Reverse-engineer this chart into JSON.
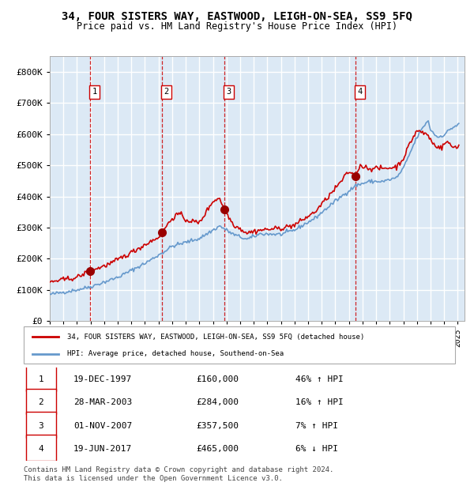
{
  "title": "34, FOUR SISTERS WAY, EASTWOOD, LEIGH-ON-SEA, SS9 5FQ",
  "subtitle": "Price paid vs. HM Land Registry's House Price Index (HPI)",
  "bg_color": "#dce9f5",
  "grid_color": "#ffffff",
  "red_line_color": "#cc0000",
  "blue_line_color": "#6699cc",
  "sale_dot_color": "#990000",
  "vline_color": "#cc0000",
  "ylim": [
    0,
    850000
  ],
  "yticks": [
    0,
    100000,
    200000,
    300000,
    400000,
    500000,
    600000,
    700000,
    800000
  ],
  "ytick_labels": [
    "£0",
    "£100K",
    "£200K",
    "£300K",
    "£400K",
    "£500K",
    "£600K",
    "£700K",
    "£800K"
  ],
  "xmin": 1995.0,
  "xmax": 2025.5,
  "sales": [
    {
      "label": "1",
      "date_str": "19-DEC-1997",
      "year": 1997.96,
      "price": 160000,
      "hpi_pct": "46%",
      "hpi_dir": "↑"
    },
    {
      "label": "2",
      "date_str": "28-MAR-2003",
      "year": 2003.24,
      "price": 284000,
      "hpi_pct": "16%",
      "hpi_dir": "↑"
    },
    {
      "label": "3",
      "date_str": "01-NOV-2007",
      "year": 2007.83,
      "price": 357500,
      "hpi_pct": "7%",
      "hpi_dir": "↑"
    },
    {
      "label": "4",
      "date_str": "19-JUN-2017",
      "year": 2017.46,
      "price": 465000,
      "hpi_pct": "6%",
      "hpi_dir": "↓"
    }
  ],
  "legend_property": "34, FOUR SISTERS WAY, EASTWOOD, LEIGH-ON-SEA, SS9 5FQ (detached house)",
  "legend_hpi": "HPI: Average price, detached house, Southend-on-Sea",
  "footer": "Contains HM Land Registry data © Crown copyright and database right 2024.\nThis data is licensed under the Open Government Licence v3.0.",
  "table_rows": [
    [
      "1",
      "19-DEC-1997",
      "£160,000",
      "46% ↑ HPI"
    ],
    [
      "2",
      "28-MAR-2003",
      "£284,000",
      "16% ↑ HPI"
    ],
    [
      "3",
      "01-NOV-2007",
      "£357,500",
      "7% ↑ HPI"
    ],
    [
      "4",
      "19-JUN-2017",
      "£465,000",
      "6% ↓ HPI"
    ]
  ]
}
